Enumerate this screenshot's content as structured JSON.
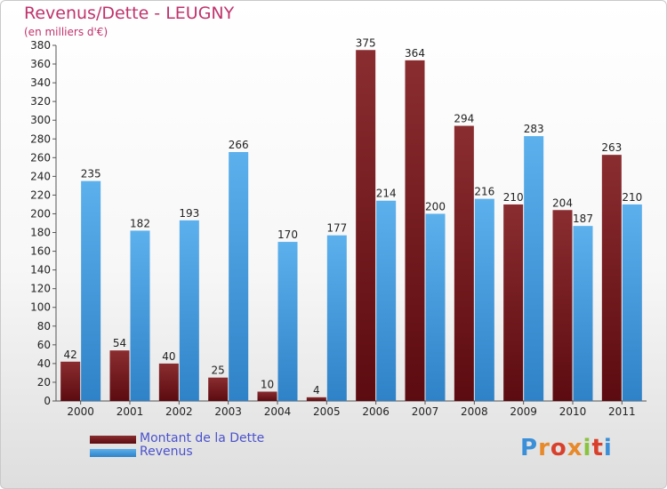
{
  "chart_data": {
    "type": "bar",
    "title": "Revenus/Dette - LEUGNY",
    "subtitle": "(en milliers d'€)",
    "categories": [
      "2000",
      "2001",
      "2002",
      "2003",
      "2004",
      "2005",
      "2006",
      "2007",
      "2008",
      "2009",
      "2010",
      "2011"
    ],
    "series": [
      {
        "name": "Montant de la Dette",
        "values": [
          42,
          54,
          40,
          25,
          10,
          4,
          375,
          364,
          294,
          210,
          204,
          263
        ]
      },
      {
        "name": "Revenus",
        "values": [
          235,
          182,
          193,
          266,
          170,
          177,
          214,
          200,
          216,
          283,
          187,
          210
        ]
      }
    ],
    "ylim": [
      0,
      380
    ],
    "ytick_step": 20,
    "grid": false,
    "legend_position": "bottom-left",
    "colors": {
      "Montant de la Dette": "#7a1f22",
      "Revenus": "#4da3e3"
    }
  },
  "logo": {
    "text": "Proxiti"
  }
}
